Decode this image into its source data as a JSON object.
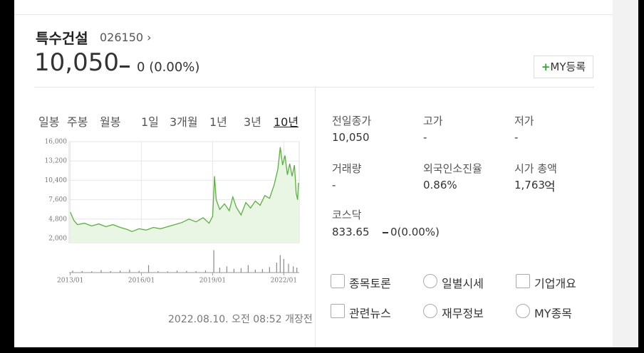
{
  "header": {
    "name": "특수건설",
    "code": "026150",
    "price": "10,050",
    "change": "0",
    "change_pct": "(0.00%)",
    "my_button": "MY등록"
  },
  "tabs": [
    "일봉",
    "주봉",
    "월봉",
    "1일",
    "3개월",
    "1년",
    "3년",
    "10년"
  ],
  "chart_data": [
    {
      "type": "line",
      "color": "#5bb040",
      "x": [
        2013.0,
        2013.15,
        2013.3,
        2013.6,
        2013.9,
        2014.2,
        2014.5,
        2014.8,
        2015.1,
        2015.4,
        2015.6,
        2015.9,
        2016.2,
        2016.5,
        2016.8,
        2017.1,
        2017.4,
        2017.7,
        2018.0,
        2018.3,
        2018.6,
        2018.85,
        2019.0,
        2019.08,
        2019.15,
        2019.3,
        2019.5,
        2019.7,
        2019.85,
        2020.0,
        2020.2,
        2020.4,
        2020.6,
        2020.8,
        2021.0,
        2021.2,
        2021.4,
        2021.6,
        2021.75,
        2021.85,
        2021.95,
        2022.05,
        2022.15,
        2022.25,
        2022.35,
        2022.45,
        2022.52,
        2022.58,
        2022.62
      ],
      "values": [
        5800,
        4600,
        4000,
        4200,
        3800,
        4100,
        3700,
        4000,
        3600,
        3300,
        3000,
        3400,
        3200,
        3600,
        3400,
        3700,
        4000,
        4300,
        4800,
        4400,
        5000,
        4200,
        5200,
        11000,
        7600,
        6200,
        7000,
        6000,
        8000,
        6500,
        5400,
        7200,
        6400,
        7400,
        6800,
        8200,
        7800,
        9800,
        12000,
        15200,
        12600,
        14000,
        11200,
        12800,
        11000,
        12600,
        8600,
        7600,
        10050
      ],
      "xlim": [
        2012.95,
        2022.65
      ],
      "ylim": [
        2000,
        16000
      ],
      "yticks": [
        {
          "value": 2000,
          "label": "2,000"
        },
        {
          "value": 4800,
          "label": "4,800"
        },
        {
          "value": 7600,
          "label": "7,600"
        },
        {
          "value": 10400,
          "label": "10,400"
        },
        {
          "value": 13200,
          "label": "13,200"
        },
        {
          "value": 16000,
          "label": "16,000"
        }
      ],
      "xticks": [
        {
          "value": 2013.0,
          "label": "2013/01"
        },
        {
          "value": 2016.0,
          "label": "2016/01"
        },
        {
          "value": 2019.0,
          "label": "2019/01"
        },
        {
          "value": 2022.0,
          "label": "2022/01"
        }
      ],
      "grid": true
    },
    {
      "type": "bar",
      "color": "#8a8a8a",
      "x": [
        2013.1,
        2013.5,
        2013.9,
        2014.3,
        2014.7,
        2015.1,
        2015.5,
        2015.9,
        2016.3,
        2016.7,
        2017.1,
        2017.5,
        2017.9,
        2018.3,
        2018.7,
        2019.05,
        2019.3,
        2019.6,
        2019.9,
        2020.2,
        2020.5,
        2020.8,
        2021.1,
        2021.4,
        2021.7,
        2021.85,
        2022.0,
        2022.2,
        2022.4,
        2022.55
      ],
      "values": [
        8,
        6,
        5,
        10,
        6,
        8,
        12,
        7,
        30,
        6,
        5,
        8,
        7,
        6,
        9,
        90,
        20,
        25,
        15,
        18,
        30,
        12,
        14,
        22,
        40,
        70,
        55,
        35,
        25,
        20
      ],
      "xlim": [
        2012.95,
        2022.65
      ],
      "ylim": [
        0,
        100
      ]
    }
  ],
  "info": [
    {
      "label": "전일종가",
      "value": "10,050"
    },
    {
      "label": "고가",
      "value": "-"
    },
    {
      "label": "저가",
      "value": "-"
    },
    {
      "label": "거래량",
      "value": "-"
    },
    {
      "label": "외국인소진율",
      "value": "0.86%"
    },
    {
      "label": "시가 총액",
      "value": "1,763",
      "unit": "억"
    }
  ],
  "index": {
    "name": "코스닥",
    "value": "833.65",
    "change": "0",
    "change_pct": "(0.00%)"
  },
  "links": [
    "종목토론",
    "일별시세",
    "기업개요",
    "관련뉴스",
    "재무정보",
    "MY종목"
  ],
  "timestamp": "2022.08.10. 오전 08:52 개장전"
}
